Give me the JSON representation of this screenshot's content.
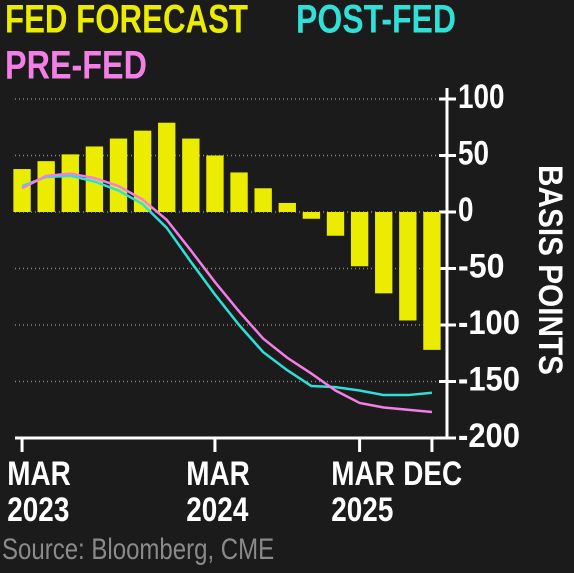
{
  "chart_data": {
    "type": "bar-line",
    "source": "Source: Bloomberg, CME",
    "ylabel": "BASIS POINTS",
    "categories": [
      "MAR 2023",
      null,
      null,
      null,
      null,
      null,
      null,
      null,
      "MAR 2024",
      null,
      null,
      null,
      null,
      null,
      "MAR 2025",
      null,
      null,
      "DEC"
    ],
    "series": [
      {
        "name": "FED FORECAST",
        "kind": "bar",
        "color": "#ecec00",
        "values": [
          38,
          45,
          51,
          58,
          65,
          72,
          79,
          65,
          50,
          35,
          21,
          8,
          -6,
          -21,
          -48,
          -72,
          -96,
          -122
        ]
      },
      {
        "name": "POST-FED",
        "kind": "line",
        "color": "#2ee0d8",
        "values": [
          23,
          31,
          32,
          27,
          19,
          7,
          -14,
          -44,
          -73,
          -100,
          -124,
          -140,
          -154,
          -155,
          -158,
          -162,
          -162,
          -160
        ]
      },
      {
        "name": "PRE-FED",
        "kind": "line",
        "color": "#f27ee6",
        "values": [
          21,
          32,
          34,
          30,
          23,
          11,
          -7,
          -34,
          -62,
          -88,
          -112,
          -129,
          -143,
          -158,
          -169,
          -173,
          -175,
          -177
        ]
      }
    ],
    "ylim": [
      -200,
      100
    ],
    "yticks": [
      100,
      50,
      0,
      -50,
      -100,
      -150,
      -200
    ],
    "grid": true
  }
}
